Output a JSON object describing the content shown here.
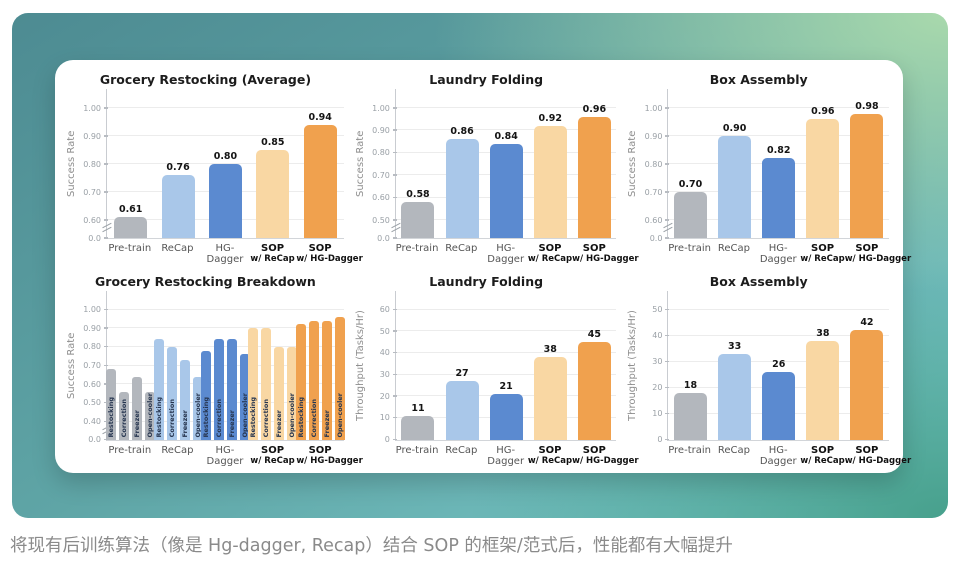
{
  "page": {
    "caption": "将现有后训练算法（像是 Hg-dagger, Recap）结合 SOP 的框架/范式后，性能都有大幅提升",
    "colors": {
      "bg_teal_dark": "#4d8b92",
      "bg_green_light": "#a9d9ac",
      "bg_cyan_light": "#7acaca",
      "bg_teal_green": "#47a08c",
      "card_bg": "#ffffff"
    }
  },
  "palette": {
    "pretrain_gray": "#b3b7bd",
    "recap_light_blue": "#a9c7e9",
    "hgdagger_blue": "#5b8ad0",
    "sop_recap_peach": "#f9d7a3",
    "sop_hgdagger_orange": "#f0a14e"
  },
  "chart_data": [
    {
      "type": "bar",
      "title": "Grocery Restocking (Average)",
      "ylabel": "Success Rate",
      "yticks": [
        "0.0",
        "0.60",
        "0.70",
        "0.80",
        "0.90",
        "1.00"
      ],
      "axis_break": true,
      "ylim": [
        0,
        1.0
      ],
      "grid": true,
      "value_format": "2dp",
      "categories": [
        {
          "label": "Pre-train"
        },
        {
          "label": "ReCap"
        },
        {
          "label": "HG-Dagger"
        },
        {
          "label": "SOP",
          "label2": "w/ ReCap",
          "bold": true
        },
        {
          "label": "SOP",
          "label2": "w/ HG-Dagger",
          "bold": true
        }
      ],
      "values": [
        0.61,
        0.76,
        0.8,
        0.85,
        0.94
      ],
      "bar_colors": [
        "#b3b7bd",
        "#a9c7e9",
        "#5b8ad0",
        "#f9d7a3",
        "#f0a14e"
      ]
    },
    {
      "type": "bar",
      "title": "Laundry Folding",
      "ylabel": "Success Rate",
      "yticks": [
        "0.0",
        "0.50",
        "0.60",
        "0.70",
        "0.80",
        "0.90",
        "1.00"
      ],
      "axis_break": true,
      "ylim": [
        0,
        1.0
      ],
      "grid": true,
      "value_format": "2dp",
      "categories": [
        {
          "label": "Pre-train"
        },
        {
          "label": "ReCap"
        },
        {
          "label": "HG-Dagger"
        },
        {
          "label": "SOP",
          "label2": "w/ ReCap",
          "bold": true
        },
        {
          "label": "SOP",
          "label2": "w/ HG-Dagger",
          "bold": true
        }
      ],
      "values": [
        0.58,
        0.86,
        0.84,
        0.92,
        0.96
      ],
      "bar_colors": [
        "#b3b7bd",
        "#a9c7e9",
        "#5b8ad0",
        "#f9d7a3",
        "#f0a14e"
      ]
    },
    {
      "type": "bar",
      "title": "Box Assembly",
      "ylabel": "Success Rate",
      "yticks": [
        "0.0",
        "0.60",
        "0.70",
        "0.80",
        "0.90",
        "1.00"
      ],
      "axis_break": true,
      "ylim": [
        0,
        1.0
      ],
      "grid": true,
      "value_format": "2dp",
      "categories": [
        {
          "label": "Pre-train"
        },
        {
          "label": "ReCap"
        },
        {
          "label": "HG-Dagger"
        },
        {
          "label": "SOP",
          "label2": "w/ ReCap",
          "bold": true
        },
        {
          "label": "SOP",
          "label2": "w/ HG-Dagger",
          "bold": true
        }
      ],
      "values": [
        0.7,
        0.9,
        0.82,
        0.96,
        0.98
      ],
      "bar_colors": [
        "#b3b7bd",
        "#a9c7e9",
        "#5b8ad0",
        "#f9d7a3",
        "#f0a14e"
      ]
    },
    {
      "type": "grouped-bar",
      "title": "Grocery Restocking Breakdown",
      "ylabel": "Success Rate",
      "yticks": [
        "0.0",
        "0.40",
        "0.50",
        "0.60",
        "0.70",
        "0.80",
        "0.90",
        "1.00"
      ],
      "axis_break": true,
      "ylim": [
        0,
        1.0
      ],
      "grid": true,
      "subcategories": [
        "Restocking",
        "Correction",
        "Freezer",
        "Open-cooler"
      ],
      "categories": [
        {
          "label": "Pre-train"
        },
        {
          "label": "ReCap"
        },
        {
          "label": "HG-Dagger"
        },
        {
          "label": "SOP",
          "label2": "w/ ReCap",
          "bold": true
        },
        {
          "label": "SOP",
          "label2": "w/ HG-Dagger",
          "bold": true
        }
      ],
      "series": [
        {
          "name": "Pre-train",
          "values": [
            0.68,
            0.56,
            0.64,
            0.56
          ]
        },
        {
          "name": "ReCap",
          "values": [
            0.84,
            0.8,
            0.73,
            0.64
          ]
        },
        {
          "name": "HG-Dagger",
          "values": [
            0.78,
            0.84,
            0.84,
            0.76
          ]
        },
        {
          "name": "SOP w/ ReCap",
          "values": [
            0.9,
            0.9,
            0.8,
            0.8
          ]
        },
        {
          "name": "SOP w/ HG-Dagger",
          "values": [
            0.92,
            0.94,
            0.94,
            0.96
          ]
        }
      ],
      "bar_colors": [
        "#b3b7bd",
        "#a9c7e9",
        "#5b8ad0",
        "#f9d7a3",
        "#f0a14e"
      ]
    },
    {
      "type": "bar",
      "title": "Laundry Folding",
      "ylabel": "Throughput (Tasks/Hr)",
      "yticks": [
        "0",
        "10",
        "20",
        "30",
        "40",
        "50",
        "60"
      ],
      "axis_break": false,
      "ylim": [
        0,
        60
      ],
      "grid": true,
      "value_format": "int",
      "categories": [
        {
          "label": "Pre-train"
        },
        {
          "label": "ReCap"
        },
        {
          "label": "HG-Dagger"
        },
        {
          "label": "SOP",
          "label2": "w/ ReCap",
          "bold": true
        },
        {
          "label": "SOP",
          "label2": "w/ HG-Dagger",
          "bold": true
        }
      ],
      "values": [
        11,
        27,
        21,
        38,
        45
      ],
      "bar_colors": [
        "#b3b7bd",
        "#a9c7e9",
        "#5b8ad0",
        "#f9d7a3",
        "#f0a14e"
      ]
    },
    {
      "type": "bar",
      "title": "Box Assembly",
      "ylabel": "Throughput (Tasks/Hr)",
      "yticks": [
        "0",
        "10",
        "20",
        "30",
        "40",
        "50"
      ],
      "axis_break": false,
      "ylim": [
        0,
        50
      ],
      "grid": true,
      "value_format": "int",
      "categories": [
        {
          "label": "Pre-train"
        },
        {
          "label": "ReCap"
        },
        {
          "label": "HG-Dagger"
        },
        {
          "label": "SOP",
          "label2": "w/ ReCap",
          "bold": true
        },
        {
          "label": "SOP",
          "label2": "w/ HG-Dagger",
          "bold": true
        }
      ],
      "values": [
        18,
        33,
        26,
        38,
        42
      ],
      "bar_colors": [
        "#b3b7bd",
        "#a9c7e9",
        "#5b8ad0",
        "#f9d7a3",
        "#f0a14e"
      ]
    }
  ]
}
